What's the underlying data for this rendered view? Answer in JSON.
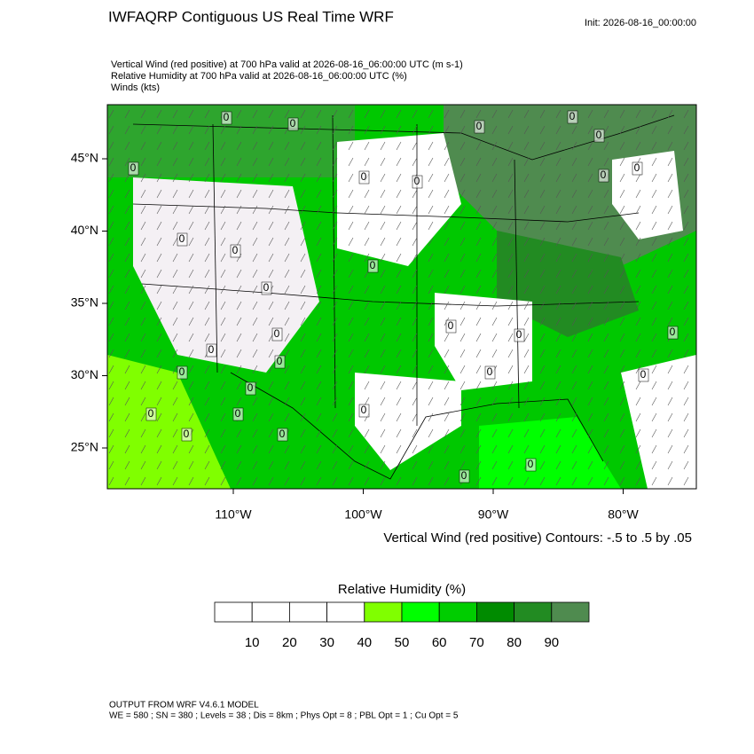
{
  "header": {
    "title": "IWFAQRP Contiguous US Real Time WRF",
    "init": "Init: 2026-08-16_00:00:00",
    "fields": [
      "Vertical Wind (red positive) at 700 hPa valid at 2026-08-16_06:00:00 UTC   (m s-1)",
      "Relative Humidity at 700 hPa valid at 2026-08-16_06:00:00 UTC   (%)",
      "Winds   (kts)"
    ]
  },
  "map": {
    "lat_ticks": [
      {
        "value": 45,
        "label": "45°N"
      },
      {
        "value": 40,
        "label": "40°N"
      },
      {
        "value": 35,
        "label": "35°N"
      },
      {
        "value": 30,
        "label": "30°N"
      },
      {
        "value": 25,
        "label": "25°N"
      }
    ],
    "lon_ticks": [
      {
        "value": -110,
        "label": "110°W"
      },
      {
        "value": -100,
        "label": "100°W"
      },
      {
        "value": -90,
        "label": "90°W"
      },
      {
        "value": -80,
        "label": "80°W"
      }
    ],
    "contour_label": "0",
    "contour_note": "Vertical Wind (red positive) Contours: -.5 to .5 by .05"
  },
  "colorbar": {
    "title": "Relative Humidity  (%)",
    "labels": [
      10,
      20,
      30,
      40,
      50,
      60,
      70,
      80,
      90
    ],
    "colors": [
      "#ffffff",
      "#ffffff",
      "#ffffff",
      "#ffffff",
      "#80ff00",
      "#00ff00",
      "#00cd00",
      "#008b00",
      "#228b22",
      "#4f8b4f"
    ]
  },
  "footer": [
    "OUTPUT FROM WRF V4.6.1 MODEL",
    "WE = 580 ; SN = 380 ; Levels = 38 ; Dis = 8km ; Phys Opt = 8 ; PBL Opt = 1 ; Cu Opt = 5"
  ]
}
